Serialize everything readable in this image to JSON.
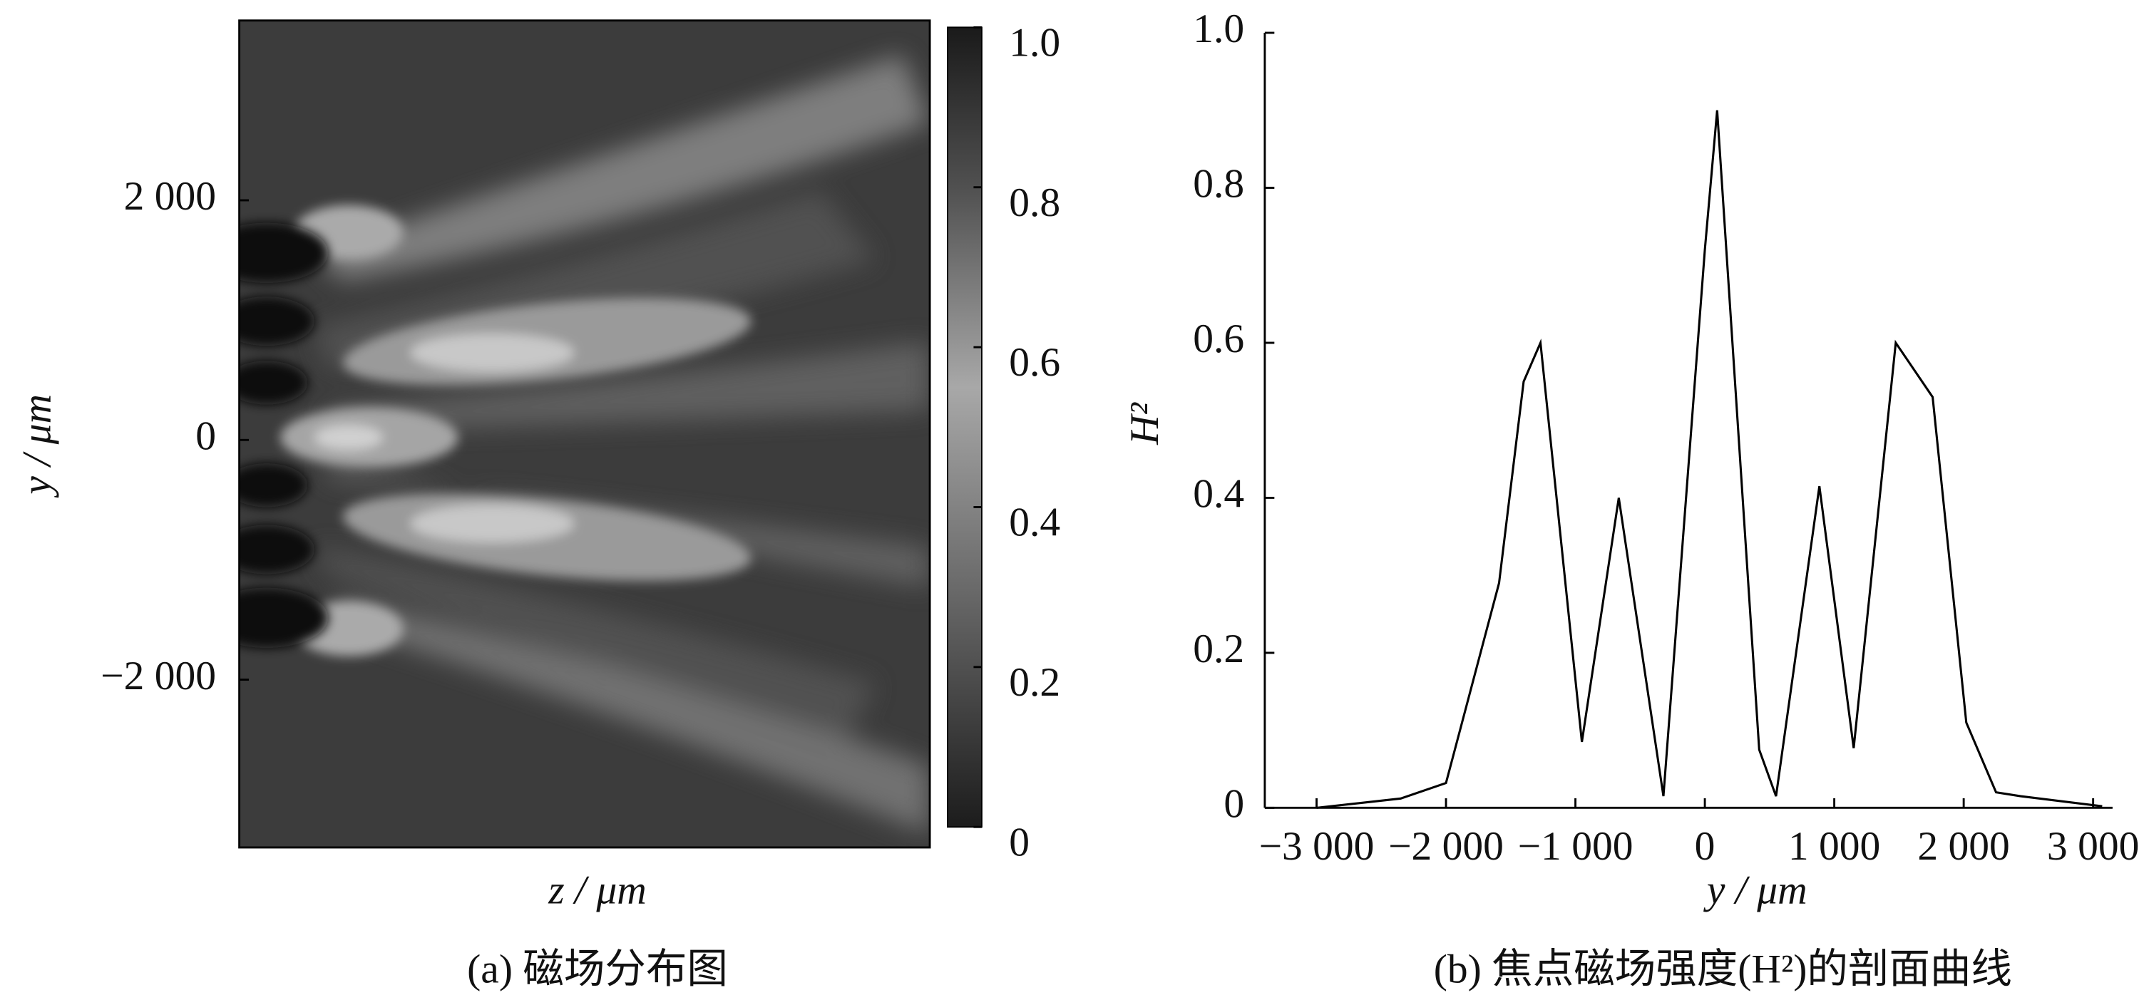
{
  "chart_data": [
    {
      "type": "heatmap",
      "caption": "(a) 磁场分布图",
      "xlabel": "z / μm",
      "ylabel": "y / μm",
      "ylim": [
        -3400,
        3500
      ],
      "yticks": [
        {
          "value": 2000,
          "label": "2 000"
        },
        0,
        {
          "value": -2000,
          "label": "−2 000"
        }
      ],
      "colorbar_lim": [
        0,
        1
      ],
      "colorbar_ticks": [
        {
          "value": 1,
          "label": "1.0"
        },
        0.8,
        0.6,
        0.4,
        0.2,
        0
      ]
    },
    {
      "type": "line",
      "caption": "(b) 焦点磁场强度(H²)的剖面曲线",
      "xlabel": "y / μm",
      "ylabel": "H²",
      "xlim": [
        -3400,
        3150
      ],
      "ylim": [
        0,
        1
      ],
      "xticks": [
        {
          "value": -3000,
          "label": "−3 000"
        },
        {
          "value": -2000,
          "label": "−2 000"
        },
        {
          "value": -1000,
          "label": "−1 000"
        },
        0,
        {
          "value": 1000,
          "label": "1 000"
        },
        {
          "value": 2000,
          "label": "2 000"
        },
        {
          "value": 3000,
          "label": "3 000"
        }
      ],
      "yticks": [
        0,
        0.2,
        0.4,
        0.6,
        0.8,
        {
          "value": 1,
          "label": "1.0"
        }
      ],
      "color": "#000000",
      "x": [
        -3000,
        -2350,
        -2000,
        -1590,
        -1400,
        -1270,
        -950,
        -665,
        -320,
        0,
        95,
        420,
        550,
        885,
        1150,
        1475,
        1760,
        2020,
        2250,
        2440,
        3070
      ],
      "values": [
        0,
        0.012,
        0.032,
        0.29,
        0.55,
        0.6,
        0.085,
        0.4,
        0.015,
        0.72,
        0.9,
        0.075,
        0.015,
        0.415,
        0.077,
        0.6,
        0.53,
        0.11,
        0.02,
        0.015,
        0.002
      ]
    }
  ]
}
